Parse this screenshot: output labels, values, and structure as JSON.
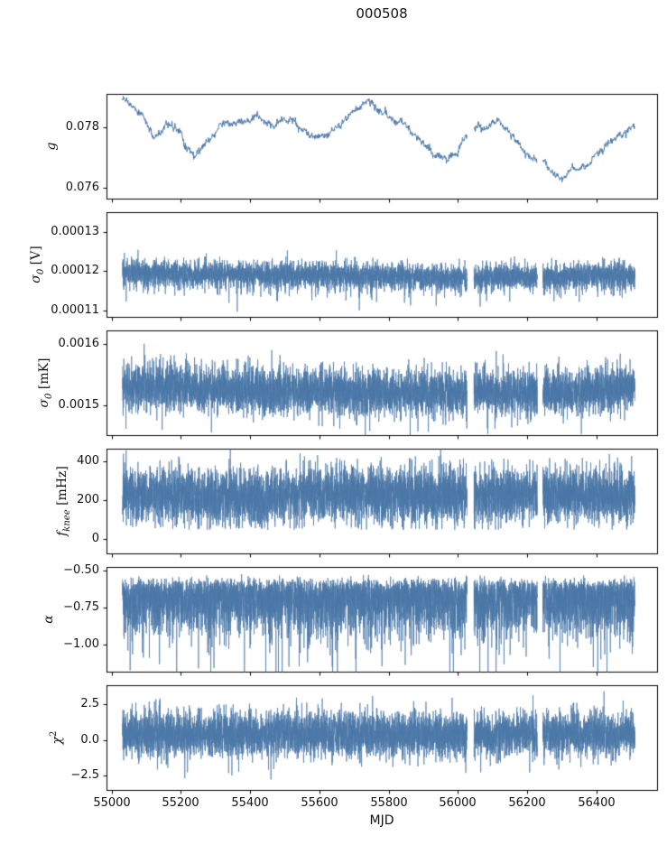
{
  "chart_data": {
    "type": "line",
    "title": "000508",
    "xlabel": "MJD",
    "xlim": [
      54985,
      56575
    ],
    "x_data_range": [
      55030,
      56510
    ],
    "xticks": [
      55000,
      55200,
      55400,
      55600,
      55800,
      56000,
      56200,
      56400
    ],
    "xtick_labels": [
      "55000",
      "55200",
      "55400",
      "55600",
      "55800",
      "56000",
      "56200",
      "56400"
    ],
    "line_color": "#4c78a8",
    "axis_color": "#000000",
    "data_gaps": [
      [
        56025,
        56045
      ],
      [
        56228,
        56244
      ]
    ],
    "panels": [
      {
        "id": "g",
        "ylabel": {
          "base": "g"
        },
        "ylim": [
          0.07565,
          0.0791
        ],
        "yticks": [
          {
            "v": 0.076,
            "label": "0.076"
          },
          {
            "v": 0.078,
            "label": "0.078"
          }
        ],
        "series": {
          "kind": "smooth",
          "n": 1400,
          "ar": 0.93,
          "ar_step": 3e-05,
          "jitter": 5e-05,
          "keypoints": [
            [
              55030,
              0.079
            ],
            [
              55080,
              0.0786
            ],
            [
              55120,
              0.0777
            ],
            [
              55160,
              0.078
            ],
            [
              55200,
              0.0778
            ],
            [
              55240,
              0.077
            ],
            [
              55270,
              0.0775
            ],
            [
              55310,
              0.0781
            ],
            [
              55360,
              0.0782
            ],
            [
              55420,
              0.0784
            ],
            [
              55470,
              0.078
            ],
            [
              55520,
              0.0783
            ],
            [
              55570,
              0.0779
            ],
            [
              55620,
              0.0778
            ],
            [
              55660,
              0.078
            ],
            [
              55700,
              0.0786
            ],
            [
              55740,
              0.0788
            ],
            [
              55790,
              0.0784
            ],
            [
              55840,
              0.0782
            ],
            [
              55890,
              0.0776
            ],
            [
              55930,
              0.0771
            ],
            [
              55970,
              0.077
            ],
            [
              56010,
              0.0774
            ],
            [
              56060,
              0.078
            ],
            [
              56110,
              0.0782
            ],
            [
              56150,
              0.0778
            ],
            [
              56200,
              0.0771
            ],
            [
              56250,
              0.0768
            ],
            [
              56300,
              0.0764
            ],
            [
              56340,
              0.0766
            ],
            [
              56390,
              0.0771
            ],
            [
              56440,
              0.0776
            ],
            [
              56480,
              0.0779
            ],
            [
              56510,
              0.078
            ]
          ]
        }
      },
      {
        "id": "sigma0-V",
        "ylabel": {
          "base": "σ",
          "sub": "0",
          "rest": " [V]"
        },
        "ylim": [
          0.0001084,
          0.000135
        ],
        "yticks": [
          {
            "v": 0.00011,
            "label": "0.00011"
          },
          {
            "v": 0.00012,
            "label": "0.00012"
          },
          {
            "v": 0.00013,
            "label": "0.00013"
          }
        ],
        "series": {
          "kind": "noise",
          "n": 6000,
          "baseline": [
            [
              55030,
              0.0001212
            ],
            [
              55250,
              0.0001206
            ],
            [
              55600,
              0.0001205
            ],
            [
              55800,
              0.0001202
            ],
            [
              55950,
              0.0001198
            ],
            [
              56150,
              0.00012
            ],
            [
              56510,
              0.0001203
            ]
          ],
          "sigma": 1.4e-06,
          "half_down": 1.6e-06,
          "spike_down": {
            "prob": 0.012,
            "min": 2e-06,
            "max": 6.2e-06
          }
        }
      },
      {
        "id": "sigma0-mK",
        "ylabel": {
          "base": "σ",
          "sub": "0",
          "rest": " [mK]"
        },
        "ylim": [
          0.001451,
          0.001622
        ],
        "yticks": [
          {
            "v": 0.0015,
            "label": "0.0015"
          },
          {
            "v": 0.0016,
            "label": "0.0016"
          }
        ],
        "series": {
          "kind": "noise",
          "n": 6000,
          "baseline": [
            [
              55030,
              0.001536
            ],
            [
              55150,
              0.001539
            ],
            [
              55400,
              0.001532
            ],
            [
              55700,
              0.00153
            ],
            [
              56000,
              0.001529
            ],
            [
              56300,
              0.001531
            ],
            [
              56510,
              0.001533
            ]
          ],
          "sigma": 1.8e-05,
          "half_down": 1e-05,
          "spike_up": {
            "prob": 0.006,
            "min": 1e-05,
            "max": 3.3e-05
          },
          "spike_down": {
            "prob": 0.006,
            "min": 1e-05,
            "max": 4e-05
          }
        }
      },
      {
        "id": "fknee",
        "ylabel": {
          "base": "f",
          "sub": "knee",
          "rest": " [mHz]"
        },
        "ylim": [
          -76,
          467
        ],
        "yticks": [
          {
            "v": 0,
            "label": "0"
          },
          {
            "v": 200,
            "label": "200"
          },
          {
            "v": 400,
            "label": "400"
          }
        ],
        "series": {
          "kind": "noise",
          "n": 6000,
          "baseline": [
            [
              55030,
              228
            ],
            [
              55450,
              215
            ],
            [
              55520,
              235
            ],
            [
              55900,
              228
            ],
            [
              56510,
              228
            ]
          ],
          "sigma": 73,
          "floor": 48,
          "spike_up": {
            "prob": 0.004,
            "min": 60,
            "max": 165
          }
        }
      },
      {
        "id": "alpha",
        "ylabel": {
          "base": "α"
        },
        "ylim": [
          -1.185,
          -0.475
        ],
        "yticks": [
          {
            "v": -1.0,
            "label": "−1.00"
          },
          {
            "v": -0.75,
            "label": "−0.75"
          },
          {
            "v": -0.5,
            "label": "−0.50"
          }
        ],
        "series": {
          "kind": "noise",
          "n": 6000,
          "baseline": [
            [
              55030,
              -0.57
            ],
            [
              56510,
              -0.57
            ]
          ],
          "sigma": 0.02,
          "half_down": 0.165,
          "spike_down": {
            "prob": 0.008,
            "min": 0.2,
            "max": 0.6
          }
        }
      },
      {
        "id": "chi2",
        "ylabel": {
          "base": "χ",
          "sup": "2"
        },
        "ylim": [
          -3.48,
          3.84
        ],
        "yticks": [
          {
            "v": -2.5,
            "label": "−2.5"
          },
          {
            "v": 0,
            "label": "0.0"
          },
          {
            "v": 2.5,
            "label": "2.5"
          }
        ],
        "series": {
          "kind": "noise",
          "n": 6000,
          "baseline": [
            [
              55030,
              0.45
            ],
            [
              56510,
              0.45
            ]
          ],
          "sigma": 0.78,
          "spike_up": {
            "prob": 0.002,
            "min": 1.2,
            "max": 2.6
          },
          "spike_down": {
            "prob": 0.003,
            "min": 1.0,
            "max": 2.8
          }
        }
      }
    ]
  }
}
